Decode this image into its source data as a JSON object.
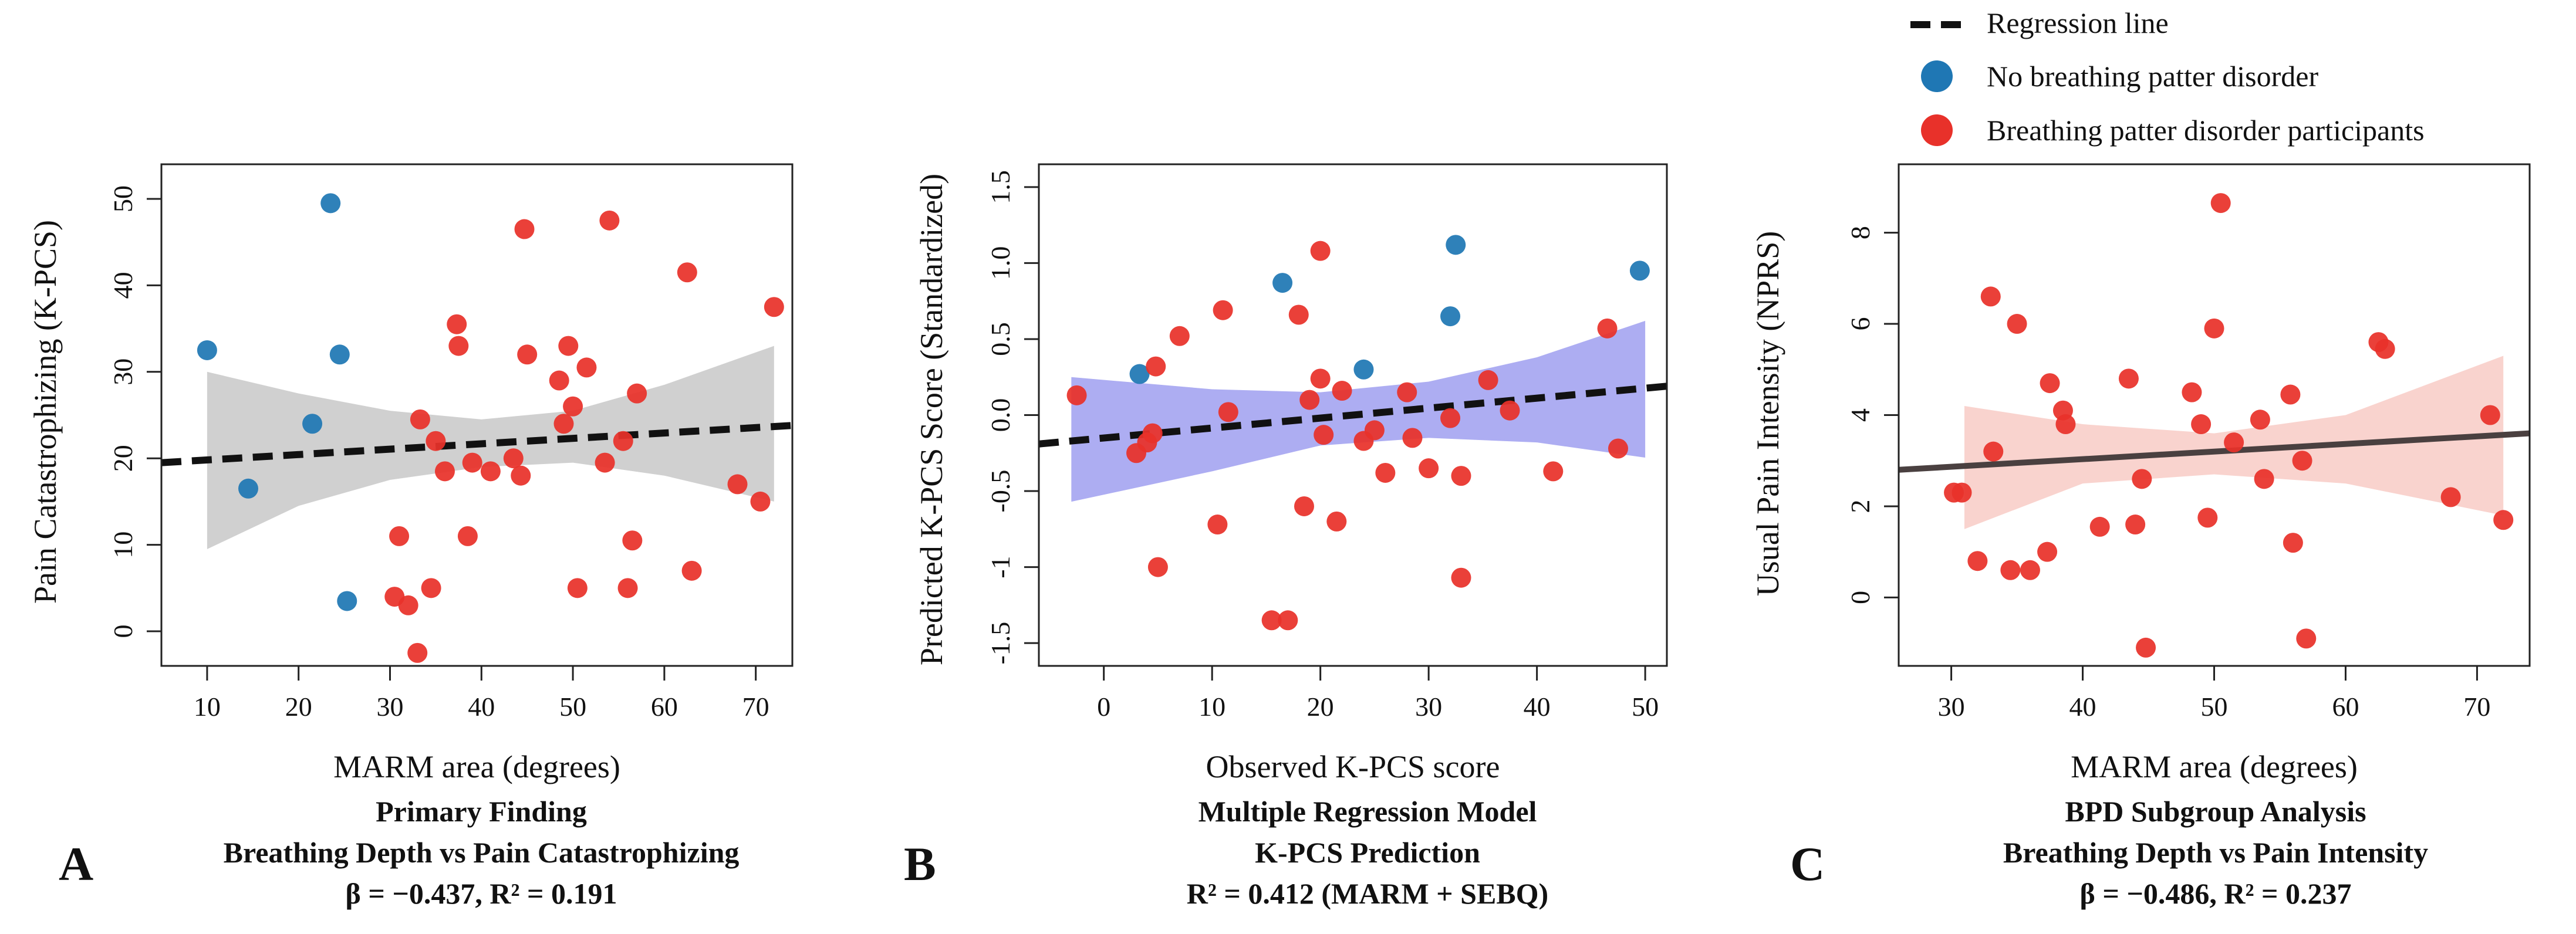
{
  "legend": {
    "items": [
      {
        "label": "Regression line",
        "kind": "dashed-line",
        "color": "#111111"
      },
      {
        "label": "No breathing patter disorder",
        "kind": "dot",
        "color": "#1f77b4"
      },
      {
        "label": "Breathing patter disorder participants",
        "kind": "dot",
        "color": "#e8312a"
      }
    ]
  },
  "chart_data": [
    {
      "type": "scatter",
      "panel_letter": "A",
      "xlabel": "MARM area (degrees)",
      "ylabel": "Pain Catastrophizing (K-PCS)",
      "caption": [
        "Primary Finding",
        "Breathing Depth vs Pain Catastrophizing",
        "β = −0.437, R² = 0.191"
      ],
      "xlim": [
        5,
        74
      ],
      "ylim": [
        -4,
        54
      ],
      "xticks": [
        10,
        20,
        30,
        40,
        50,
        60,
        70
      ],
      "yticks": [
        0,
        10,
        20,
        30,
        40,
        50
      ],
      "regression": {
        "x": [
          5,
          74
        ],
        "y": [
          19.5,
          23.8
        ],
        "style": "dashed",
        "color": "#111111"
      },
      "band": {
        "color": "#c8c8c8",
        "upper": [
          [
            10,
            30
          ],
          [
            20,
            27.5
          ],
          [
            30,
            25.5
          ],
          [
            40,
            24.5
          ],
          [
            50,
            25.5
          ],
          [
            60,
            28.5
          ],
          [
            72,
            33
          ]
        ],
        "lower": [
          [
            10,
            9.5
          ],
          [
            20,
            14.5
          ],
          [
            30,
            17.5
          ],
          [
            40,
            19
          ],
          [
            50,
            19.5
          ],
          [
            60,
            18
          ],
          [
            72,
            15
          ]
        ]
      },
      "series": [
        {
          "name": "No breathing patter disorder",
          "color": "#1f77b4",
          "points": [
            [
              10,
              32.5
            ],
            [
              14.5,
              16.5
            ],
            [
              21.5,
              24
            ],
            [
              23.5,
              49.5
            ],
            [
              24.5,
              32
            ],
            [
              25.3,
              3.5
            ]
          ]
        },
        {
          "name": "Breathing patter disorder participants",
          "color": "#e8312a",
          "points": [
            [
              30.5,
              4
            ],
            [
              31,
              11
            ],
            [
              32,
              3
            ],
            [
              33,
              -2.5
            ],
            [
              33.3,
              24.5
            ],
            [
              34.5,
              5
            ],
            [
              35,
              22
            ],
            [
              36,
              18.5
            ],
            [
              37.3,
              35.5
            ],
            [
              37.5,
              33
            ],
            [
              38.5,
              11
            ],
            [
              39,
              19.5
            ],
            [
              41,
              18.5
            ],
            [
              43.5,
              20
            ],
            [
              44.3,
              18
            ],
            [
              44.7,
              46.5
            ],
            [
              45,
              32
            ],
            [
              48.5,
              29
            ],
            [
              49,
              24
            ],
            [
              49.5,
              33
            ],
            [
              50,
              26
            ],
            [
              50.5,
              5
            ],
            [
              51.5,
              30.5
            ],
            [
              53.5,
              19.5
            ],
            [
              54,
              47.5
            ],
            [
              55.5,
              22
            ],
            [
              56,
              5
            ],
            [
              56.5,
              10.5
            ],
            [
              57,
              27.5
            ],
            [
              62.5,
              41.5
            ],
            [
              63,
              7
            ],
            [
              68,
              17
            ],
            [
              70.5,
              15
            ],
            [
              72,
              37.5
            ]
          ]
        }
      ]
    },
    {
      "type": "scatter",
      "panel_letter": "B",
      "xlabel": "Observed K-PCS score",
      "ylabel": "Predicted K-PCS Score (Standardized)",
      "caption": [
        "Multiple Regression Model",
        "K-PCS Prediction",
        "R² = 0.412 (MARM + SEBQ)"
      ],
      "xlim": [
        -6,
        52
      ],
      "ylim": [
        -1.65,
        1.65
      ],
      "xticks": [
        0,
        10,
        20,
        30,
        40,
        50
      ],
      "yticks": [
        -1.5,
        -1,
        -0.5,
        0,
        0.5,
        1,
        1.5
      ],
      "ytick_labels": [
        "-1.5",
        "-1",
        "-0.5",
        "0.0",
        "0.5",
        "1.0",
        "1.5"
      ],
      "regression": {
        "x": [
          -6,
          52
        ],
        "y": [
          -0.19,
          0.19
        ],
        "style": "dashed",
        "color": "#111111"
      },
      "band": {
        "color": "#9f9ff0",
        "upper": [
          [
            -3,
            0.25
          ],
          [
            10,
            0.17
          ],
          [
            20,
            0.15
          ],
          [
            30,
            0.22
          ],
          [
            40,
            0.38
          ],
          [
            50,
            0.62
          ]
        ],
        "lower": [
          [
            -3,
            -0.57
          ],
          [
            10,
            -0.37
          ],
          [
            20,
            -0.2
          ],
          [
            30,
            -0.15
          ],
          [
            40,
            -0.18
          ],
          [
            50,
            -0.28
          ]
        ]
      },
      "series": [
        {
          "name": "No breathing patter disorder",
          "color": "#1f77b4",
          "points": [
            [
              3.3,
              0.27
            ],
            [
              16.5,
              0.87
            ],
            [
              24,
              0.3
            ],
            [
              32,
              0.65
            ],
            [
              32.5,
              1.12
            ],
            [
              49.5,
              0.95
            ]
          ]
        },
        {
          "name": "Breathing patter disorder participants",
          "color": "#e8312a",
          "points": [
            [
              -2.5,
              0.13
            ],
            [
              3,
              -0.25
            ],
            [
              4,
              -0.18
            ],
            [
              4.5,
              -0.12
            ],
            [
              4.8,
              0.32
            ],
            [
              5,
              -1.0
            ],
            [
              7,
              0.52
            ],
            [
              10.5,
              -0.72
            ],
            [
              11,
              0.69
            ],
            [
              11.5,
              0.02
            ],
            [
              15.5,
              -1.35
            ],
            [
              17,
              -1.35
            ],
            [
              18,
              0.66
            ],
            [
              18.5,
              -0.6
            ],
            [
              19,
              0.1
            ],
            [
              20,
              1.08
            ],
            [
              20,
              0.24
            ],
            [
              20.3,
              -0.13
            ],
            [
              21.5,
              -0.7
            ],
            [
              22,
              0.16
            ],
            [
              24,
              -0.17
            ],
            [
              25,
              -0.1
            ],
            [
              26,
              -0.38
            ],
            [
              28,
              0.15
            ],
            [
              28.5,
              -0.15
            ],
            [
              30,
              -0.35
            ],
            [
              32,
              -0.02
            ],
            [
              33,
              -0.4
            ],
            [
              33,
              -1.07
            ],
            [
              35.5,
              0.23
            ],
            [
              37.5,
              0.03
            ],
            [
              41.5,
              -0.37
            ],
            [
              46.5,
              0.57
            ],
            [
              47.5,
              -0.22
            ]
          ]
        }
      ]
    },
    {
      "type": "scatter",
      "panel_letter": "C",
      "xlabel": "MARM area (degrees)",
      "ylabel": "Usual Pain Intensity (NPRS)",
      "caption": [
        "BPD Subgroup Analysis",
        "Breathing Depth vs Pain Intensity",
        "β = −0.486, R² = 0.237"
      ],
      "xlim": [
        26,
        74
      ],
      "ylim": [
        -1.5,
        9.5
      ],
      "xticks": [
        30,
        40,
        50,
        60,
        70
      ],
      "yticks": [
        0,
        2,
        4,
        6,
        8
      ],
      "regression": {
        "x": [
          26,
          74
        ],
        "y": [
          2.8,
          3.6
        ],
        "style": "solid",
        "color": "#4a4040"
      },
      "band": {
        "color": "#f8cbc6",
        "upper": [
          [
            31,
            4.2
          ],
          [
            40,
            3.8
          ],
          [
            50,
            3.6
          ],
          [
            60,
            4.0
          ],
          [
            72,
            5.3
          ]
        ],
        "lower": [
          [
            31,
            1.5
          ],
          [
            40,
            2.5
          ],
          [
            50,
            2.7
          ],
          [
            60,
            2.5
          ],
          [
            72,
            1.8
          ]
        ]
      },
      "series": [
        {
          "name": "Breathing patter disorder participants",
          "color": "#e8312a",
          "points": [
            [
              30.2,
              2.3
            ],
            [
              30.8,
              2.3
            ],
            [
              32,
              0.8
            ],
            [
              33,
              6.6
            ],
            [
              33.2,
              3.2
            ],
            [
              34.5,
              0.6
            ],
            [
              35,
              6.0
            ],
            [
              36,
              0.6
            ],
            [
              37.3,
              1.0
            ],
            [
              37.5,
              4.7
            ],
            [
              38.5,
              4.1
            ],
            [
              38.7,
              3.8
            ],
            [
              41.3,
              1.55
            ],
            [
              43.5,
              4.8
            ],
            [
              44,
              1.6
            ],
            [
              44.5,
              2.6
            ],
            [
              44.8,
              -1.1
            ],
            [
              48.3,
              4.5
            ],
            [
              49,
              3.8
            ],
            [
              49.5,
              1.75
            ],
            [
              50,
              5.9
            ],
            [
              50.5,
              8.65
            ],
            [
              51.5,
              3.4
            ],
            [
              53.5,
              3.9
            ],
            [
              53.8,
              2.6
            ],
            [
              55.8,
              4.45
            ],
            [
              56,
              1.2
            ],
            [
              56.7,
              3.0
            ],
            [
              57,
              -0.9
            ],
            [
              62.5,
              5.6
            ],
            [
              63,
              5.45
            ],
            [
              68,
              2.2
            ],
            [
              71,
              4.0
            ],
            [
              72,
              1.7
            ]
          ]
        }
      ]
    }
  ]
}
